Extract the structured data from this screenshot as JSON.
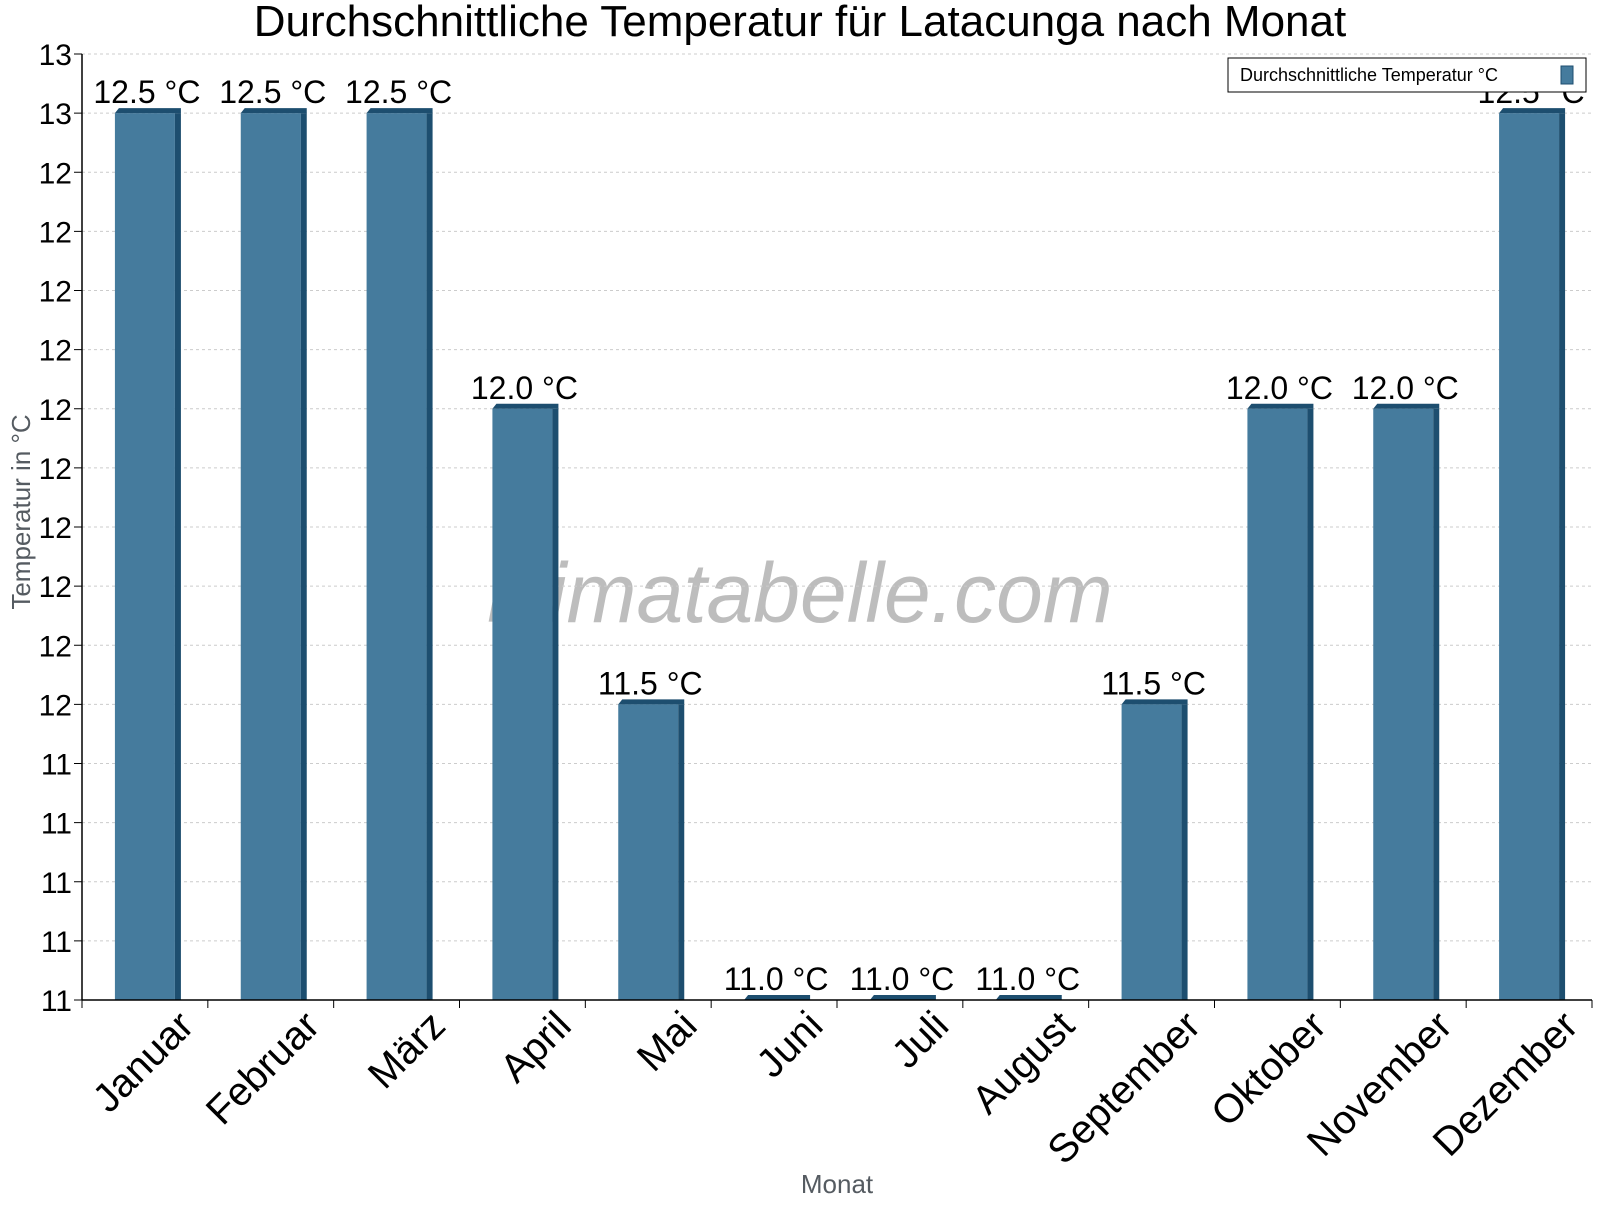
{
  "chart_data": {
    "type": "bar",
    "title": "Durchschnittliche Temperatur für Latacunga nach Monat",
    "xlabel": "Monat",
    "ylabel": "Temperatur in °C",
    "categories": [
      "Januar",
      "Februar",
      "März",
      "April",
      "Mai",
      "Juni",
      "Juli",
      "August",
      "September",
      "Oktober",
      "November",
      "Dezember"
    ],
    "series": [
      {
        "name": "Durchschnittliche Temperatur °C",
        "values": [
          12.5,
          12.5,
          12.5,
          12.0,
          11.5,
          11.0,
          11.0,
          11.0,
          11.5,
          12.0,
          12.0,
          12.5
        ],
        "labels": [
          "12.5 °C",
          "12.5 °C",
          "12.5 °C",
          "12.0 °C",
          "11.5 °C",
          "11.0 °C",
          "11.0 °C",
          "11.0 °C",
          "11.5 °C",
          "12.0 °C",
          "12.0 °C",
          "12.5 °C"
        ]
      }
    ],
    "ylim": [
      11.0,
      12.6
    ],
    "yticks": [
      11.0,
      11.1,
      11.2,
      11.3,
      11.4,
      11.5,
      11.6,
      11.7,
      11.8,
      11.9,
      12.0,
      12.1,
      12.2,
      12.3,
      12.4,
      12.5,
      12.6
    ],
    "ytick_labels": [
      "11",
      "11",
      "11",
      "11",
      "11",
      "12",
      "12",
      "12",
      "12",
      "12",
      "12",
      "12",
      "12",
      "12",
      "12",
      "13",
      "13"
    ],
    "grid": true,
    "legend_position": "top-right",
    "watermark": "klimatabelle.com",
    "colors": {
      "bar_face": "#457b9d",
      "bar_side": "#1d4e6f",
      "bar_top": "#1d4e6f",
      "grid": "#cccccc",
      "axis": "#000000"
    }
  }
}
